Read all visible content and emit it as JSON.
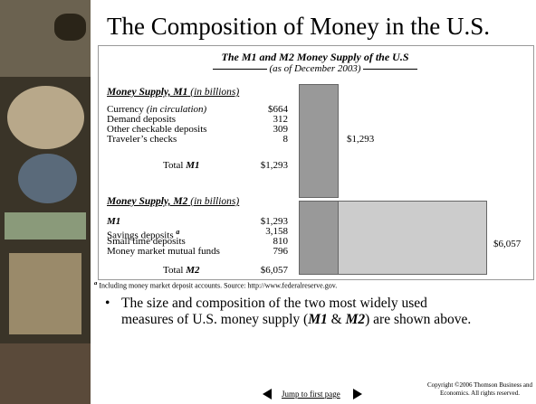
{
  "title": "The Composition of Money in the U.S.",
  "panel": {
    "title": "The M1 and M2 Money Supply of the U.S",
    "subtitle": "(as of December 2003)",
    "m1": {
      "heading": "Money Supply, M1",
      "unit": "(in billions)",
      "rows": [
        {
          "label": "Currency",
          "note": "(in circulation)",
          "value": "$664"
        },
        {
          "label": "Demand deposits",
          "value": "312"
        },
        {
          "label": "Other checkable deposits",
          "value": "309"
        },
        {
          "label": "Traveler’s checks",
          "value": "8"
        }
      ],
      "total_label": "Total",
      "total_name": "M1",
      "total": "$1,293",
      "bar_label": "$1,293"
    },
    "m2": {
      "heading": "Money Supply, M2",
      "unit": "(in billions)",
      "rows": [
        {
          "label": "M1",
          "value": "$1,293"
        },
        {
          "label": "Savings deposits",
          "note": "a",
          "value": "3,158"
        },
        {
          "label": "Small time deposits",
          "value": "810"
        },
        {
          "label": "Money market mutual funds",
          "value": "796"
        }
      ],
      "total_label": "Total",
      "total_name": "M2",
      "total": "$6,057",
      "bar_label": "$6,057"
    }
  },
  "footnote": {
    "marker": "a",
    "text": "Including money market deposit accounts.  Source:  http://www.federalreserve.gov."
  },
  "bullet": [
    "The size and composition of the two most widely used",
    "measures of U.S. money supply (",
    "M1",
    " & ",
    "M2",
    ") are shown above."
  ],
  "nav": "Jump to first page",
  "copyright": [
    "Copyright ©2006  Thomson Business and",
    "Economics. All rights reserved."
  ]
}
